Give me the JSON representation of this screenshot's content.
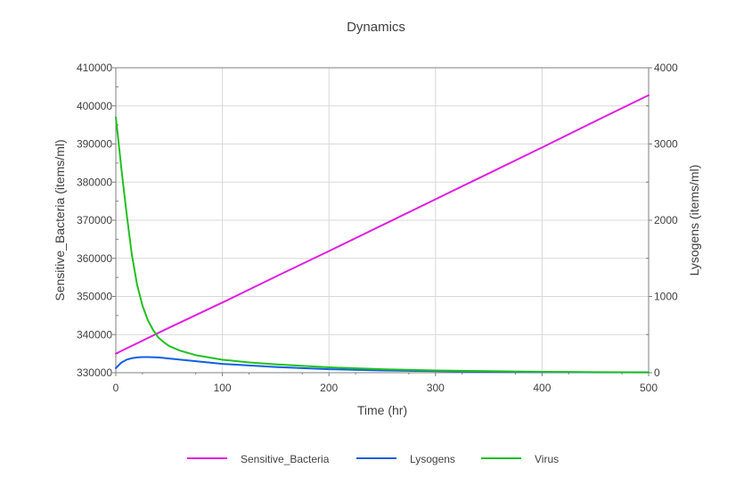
{
  "chart_data": {
    "type": "line",
    "title": "Dynamics",
    "xlabel": "Time (hr)",
    "ylabel_left": "Sensitive_Bacteria (items/ml)",
    "ylabel_right": "Lysogens (items/ml)",
    "xlim": [
      0,
      500
    ],
    "ylim_left": [
      330000,
      410000
    ],
    "ylim_right": [
      0,
      4000
    ],
    "x_ticks": [
      "0",
      "100",
      "200",
      "300",
      "400",
      "500"
    ],
    "y_left_ticks": [
      "330000",
      "340000",
      "350000",
      "360000",
      "370000",
      "380000",
      "390000",
      "400000",
      "410000"
    ],
    "y_right_ticks": [
      "0",
      "1000",
      "2000",
      "3000",
      "4000"
    ],
    "grid": true,
    "legend_position": "bottom",
    "series": [
      {
        "name": "Sensitive_Bacteria",
        "axis": "left",
        "color": "#e020e0",
        "x": [
          0,
          50,
          100,
          150,
          200,
          250,
          300,
          350,
          400,
          450,
          500
        ],
        "y": [
          335000,
          341800,
          348400,
          355200,
          361900,
          368700,
          375500,
          382300,
          389100,
          396000,
          402800
        ]
      },
      {
        "name": "Lysogens",
        "axis": "right",
        "color": "#1060e0",
        "x": [
          0,
          5,
          10,
          15,
          20,
          25,
          30,
          40,
          50,
          75,
          100,
          150,
          200,
          250,
          300,
          350,
          400,
          450,
          500
        ],
        "y": [
          60,
          130,
          170,
          190,
          200,
          205,
          205,
          200,
          185,
          150,
          115,
          75,
          45,
          30,
          20,
          12,
          8,
          5,
          4
        ]
      },
      {
        "name": "Virus",
        "axis": "right",
        "color": "#20c020",
        "x": [
          0,
          2,
          5,
          10,
          15,
          20,
          25,
          30,
          35,
          40,
          45,
          50,
          60,
          75,
          100,
          125,
          150,
          200,
          250,
          300,
          350,
          400,
          450,
          500
        ],
        "y": [
          3350,
          3100,
          2700,
          2100,
          1550,
          1150,
          880,
          690,
          560,
          460,
          400,
          350,
          290,
          230,
          170,
          135,
          110,
          70,
          45,
          30,
          20,
          12,
          8,
          5
        ]
      }
    ]
  }
}
